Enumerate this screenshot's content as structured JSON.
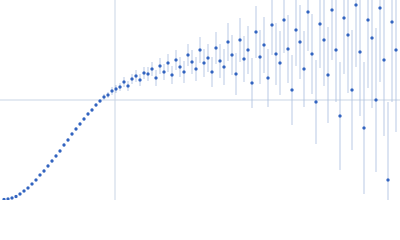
{
  "chart_data": {
    "type": "scatter",
    "xlim": [
      0,
      400
    ],
    "ylim": [
      0,
      200
    ],
    "gridlines": {
      "x": [
        115
      ],
      "y": [
        100
      ]
    },
    "grid_color": "#c8d4e4",
    "series": [
      {
        "color": "#3264c0",
        "error_color": "#a9bde0",
        "x": [
          4,
          8,
          12,
          16,
          20,
          24,
          28,
          32,
          36,
          40,
          44,
          48,
          52,
          56,
          60,
          64,
          68,
          72,
          76,
          80,
          84,
          88,
          92,
          96,
          100,
          104,
          108,
          112,
          116,
          120,
          124,
          128,
          132,
          136,
          140,
          144,
          148,
          152,
          156,
          160,
          164,
          168,
          172,
          176,
          180,
          184,
          188,
          192,
          196,
          200,
          204,
          208,
          212,
          216,
          220,
          224,
          228,
          232,
          236,
          240,
          244,
          248,
          252,
          256,
          260,
          264,
          268,
          272,
          276,
          280,
          284,
          288,
          292,
          296,
          300,
          304,
          308,
          312,
          316,
          320,
          324,
          328,
          332,
          336,
          340,
          344,
          348,
          352,
          356,
          360,
          364,
          368,
          372,
          376,
          380,
          384,
          388,
          392,
          396
        ],
        "values": [
          0.5,
          1,
          2,
          3.5,
          6,
          9,
          12,
          16,
          20,
          25,
          29,
          34,
          39,
          44,
          49,
          55,
          60,
          66,
          71,
          76,
          81,
          86,
          90,
          95,
          99,
          103,
          105,
          109,
          111,
          113,
          118,
          114,
          121,
          124,
          120,
          127,
          126,
          131,
          122,
          134,
          128,
          137,
          125,
          140,
          133,
          128,
          145,
          138,
          131,
          150,
          137,
          142,
          128,
          152,
          139,
          133,
          158,
          145,
          126,
          160,
          141,
          150,
          117,
          168,
          143,
          155,
          122,
          175,
          146,
          137,
          180,
          151,
          110,
          170,
          158,
          131,
          188,
          146,
          98,
          176,
          160,
          125,
          190,
          150,
          84,
          182,
          165,
          110,
          195,
          148,
          72,
          180,
          162,
          100,
          192,
          140,
          20,
          178,
          150
        ],
        "errors": [
          1,
          1,
          1,
          1,
          1,
          1,
          1,
          1,
          1,
          1,
          2,
          2,
          2,
          2,
          2,
          2,
          2,
          2,
          2,
          2,
          2,
          2,
          2,
          2,
          2,
          3,
          3,
          4,
          4,
          4,
          5,
          5,
          5,
          6,
          6,
          6,
          7,
          7,
          8,
          8,
          8,
          9,
          9,
          10,
          10,
          11,
          11,
          12,
          12,
          13,
          14,
          14,
          15,
          16,
          17,
          18,
          19,
          20,
          21,
          22,
          23,
          24,
          25,
          26,
          27,
          28,
          29,
          30,
          31,
          32,
          33,
          34,
          35,
          36,
          37,
          38,
          39,
          40,
          42,
          44,
          46,
          48,
          50,
          52,
          54,
          56,
          58,
          60,
          62,
          64,
          66,
          68,
          70,
          72,
          74,
          76,
          78,
          80,
          82
        ]
      }
    ]
  }
}
